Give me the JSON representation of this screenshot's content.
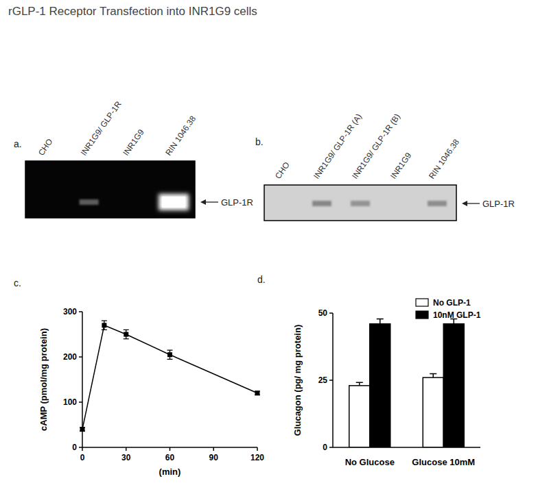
{
  "title": "rGLP-1 Receptor Transfection into INR1G9 cells",
  "blots": [
    {
      "label": "a.",
      "lanes": [
        "CHO",
        "INR1G9/ GLP-1R",
        "INR1G9",
        "RIN 1046.38"
      ],
      "band": "GLP-1R"
    },
    {
      "label": "b.",
      "lanes": [
        "CHO",
        "INR1G9/ GLP-1R (A)",
        "INR1G9/ GLP-1R (B)",
        "INR1G9",
        "RIN 1046.38"
      ],
      "band": "GLP-1R"
    }
  ],
  "chart_data": [
    {
      "type": "line",
      "annotations": [
        "c."
      ],
      "x": [
        0,
        15,
        30,
        60,
        120
      ],
      "values": [
        40,
        270,
        250,
        205,
        120
      ],
      "errors": [
        4,
        10,
        10,
        10,
        4
      ],
      "x_label": "(min)",
      "y_label": "cAMP (pmol/mg protein)",
      "xlim": [
        0,
        120
      ],
      "xticks": [
        0,
        30,
        60,
        90,
        120
      ],
      "ylim": [
        0,
        300
      ],
      "yticks": [
        0,
        100,
        200,
        300
      ],
      "color": "#000000",
      "marker": "square",
      "grid": false
    },
    {
      "type": "bar",
      "annotations": [
        "d."
      ],
      "categories": [
        "No Glucose",
        "Glucose 10mM"
      ],
      "series": [
        {
          "name": "No GLP-1",
          "color": "#ffffff",
          "values": [
            23,
            26
          ],
          "errors": [
            1.2,
            1.4
          ]
        },
        {
          "name": "10nM GLP-1",
          "color": "#000000",
          "values": [
            46,
            46
          ],
          "errors": [
            1.8,
            1.8
          ]
        }
      ],
      "y_label": "Glucagon (pg/ mg protein)",
      "ylim": [
        0,
        50
      ],
      "yticks": [
        0,
        25,
        50
      ],
      "legend": "top-right",
      "grid": false
    }
  ]
}
